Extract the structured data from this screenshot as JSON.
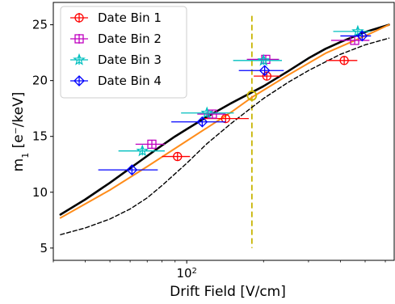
{
  "chart_data": {
    "type": "scatter",
    "title": "",
    "xlabel": "Drift Field [V/cm]",
    "ylabel_main": "m",
    "ylabel_sub": "1",
    "ylabel_unit": " [e⁻/keV]",
    "xscale": "log",
    "xlim": [
      30,
      650
    ],
    "ylim": [
      3.9,
      27
    ],
    "x_major_tick": {
      "value": 100,
      "label_base": "10",
      "label_exp": "2"
    },
    "y_ticks": [
      5,
      10,
      15,
      20,
      25
    ],
    "y_tick_labels": [
      "5",
      "10",
      "15",
      "20",
      "25"
    ],
    "grid": false,
    "legend": {
      "placement": "top-left"
    },
    "series": [
      {
        "name": "Date Bin 1",
        "color": "#ff0000",
        "marker": "circle",
        "points": [
          {
            "x": 92,
            "y": 13.2,
            "xlo": 80,
            "xhi": 103
          },
          {
            "x": 142,
            "y": 16.6,
            "xlo": 117,
            "xhi": 175
          },
          {
            "x": 206,
            "y": 20.4,
            "xlo": 183,
            "xhi": 232
          },
          {
            "x": 414,
            "y": 21.8,
            "xlo": 352,
            "xhi": 466
          }
        ]
      },
      {
        "name": "Date Bin 2",
        "color": "#bf00bf",
        "marker": "square",
        "points": [
          {
            "x": 73,
            "y": 14.3,
            "xlo": 63,
            "xhi": 82
          },
          {
            "x": 126,
            "y": 17.0,
            "xlo": 110,
            "xhi": 142
          },
          {
            "x": 204,
            "y": 21.9,
            "xlo": 172,
            "xhi": 230
          },
          {
            "x": 455,
            "y": 23.6,
            "xlo": 368,
            "xhi": 520
          }
        ]
      },
      {
        "name": "Date Bin 3",
        "color": "#00bfbf",
        "marker": "star",
        "points": [
          {
            "x": 67,
            "y": 13.7,
            "xlo": 54,
            "xhi": 82
          },
          {
            "x": 120,
            "y": 17.1,
            "xlo": 95,
            "xhi": 153
          },
          {
            "x": 200,
            "y": 21.8,
            "xlo": 152,
            "xhi": 236
          },
          {
            "x": 468,
            "y": 24.4,
            "xlo": 375,
            "xhi": 525
          }
        ]
      },
      {
        "name": "Date Bin 4",
        "color": "#0000ff",
        "marker": "diamond",
        "points": [
          {
            "x": 61,
            "y": 12.0,
            "xlo": 45,
            "xhi": 77
          },
          {
            "x": 115,
            "y": 16.3,
            "xlo": 87,
            "xhi": 142
          },
          {
            "x": 202,
            "y": 20.9,
            "xlo": 160,
            "xhi": 240
          },
          {
            "x": 487,
            "y": 24.0,
            "xlo": 400,
            "xhi": 527
          }
        ]
      }
    ],
    "curves": [
      {
        "style": "solid",
        "color": "#000000",
        "points": [
          [
            32,
            8.0
          ],
          [
            40,
            9.35
          ],
          [
            50,
            10.85
          ],
          [
            60,
            12.15
          ],
          [
            70,
            13.25
          ],
          [
            80,
            14.2
          ],
          [
            90,
            15.0
          ],
          [
            100,
            15.65
          ],
          [
            120,
            16.75
          ],
          [
            150,
            18.0
          ],
          [
            180,
            18.95
          ],
          [
            200,
            19.5
          ],
          [
            250,
            20.85
          ],
          [
            300,
            22.0
          ],
          [
            350,
            22.85
          ],
          [
            400,
            23.45
          ],
          [
            500,
            24.35
          ],
          [
            620,
            25.0
          ]
        ]
      },
      {
        "style": "solid",
        "color": "#ff8c1a",
        "points": [
          [
            32,
            7.7
          ],
          [
            50,
            10.2
          ],
          [
            70,
            12.3
          ],
          [
            100,
            14.6
          ],
          [
            150,
            17.2
          ],
          [
            180,
            18.5
          ],
          [
            250,
            20.5
          ],
          [
            350,
            22.45
          ],
          [
            500,
            24.0
          ],
          [
            620,
            25.0
          ]
        ]
      },
      {
        "style": "dashed",
        "color": "#000000",
        "points": [
          [
            32,
            6.2
          ],
          [
            40,
            6.8
          ],
          [
            50,
            7.6
          ],
          [
            60,
            8.5
          ],
          [
            70,
            9.5
          ],
          [
            80,
            10.6
          ],
          [
            100,
            12.6
          ],
          [
            120,
            14.35
          ],
          [
            150,
            16.2
          ],
          [
            180,
            17.6
          ],
          [
            200,
            18.4
          ],
          [
            250,
            19.85
          ],
          [
            300,
            20.9
          ],
          [
            400,
            22.35
          ],
          [
            500,
            23.2
          ],
          [
            620,
            23.8
          ]
        ]
      }
    ],
    "reference_line": {
      "x": 180,
      "color": "#c8b400",
      "style": "dashed"
    },
    "highlight_point": {
      "x": 180,
      "y": 18.65,
      "color": "#c8b400",
      "marker": "circle"
    }
  }
}
